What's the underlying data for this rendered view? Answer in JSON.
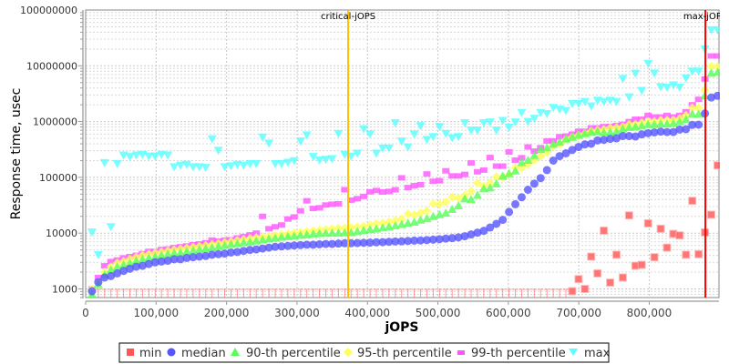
{
  "chart_data": {
    "type": "scatter",
    "xlabel": "jOPS",
    "ylabel": "Response time, usec",
    "xlim": [
      0,
      899000
    ],
    "ylim": [
      700,
      100000000
    ],
    "y_scale": "log",
    "grid": true,
    "legend_position": "bottom",
    "x_ticks": [
      "0",
      "100,000",
      "200,000",
      "300,000",
      "400,000",
      "500,000",
      "600,000",
      "700,000",
      "800,000"
    ],
    "x_tick_values": [
      0,
      100000,
      200000,
      300000,
      400000,
      500000,
      600000,
      700000,
      800000
    ],
    "y_ticks": [
      "1000",
      "10000",
      "100000",
      "1000000",
      "10000000",
      "100000000"
    ],
    "y_tick_values": [
      1000,
      10000,
      100000,
      1000000,
      10000000,
      100000000
    ],
    "annotations": [
      {
        "label": "critical-jOPS",
        "x": 372600,
        "color": "#ffc000"
      },
      {
        "label": "max-jOPS",
        "x": 879700,
        "color": "#ff0000"
      }
    ],
    "x": [
      8970,
      17940,
      26910,
      35880,
      44850,
      53820,
      62790,
      71760,
      80730,
      89700,
      98670,
      107640,
      116610,
      125580,
      134550,
      143520,
      152490,
      161460,
      170430,
      179400,
      188370,
      197340,
      206310,
      215280,
      224250,
      233220,
      242190,
      251160,
      260130,
      269100,
      278070,
      287040,
      296010,
      304980,
      313950,
      322920,
      331890,
      340860,
      349830,
      358800,
      367770,
      376740,
      385710,
      394680,
      403650,
      412620,
      421590,
      430560,
      439530,
      448500,
      457470,
      466440,
      475410,
      484380,
      493350,
      502320,
      511290,
      520260,
      529230,
      538200,
      547170,
      556140,
      565110,
      574080,
      583050,
      592020,
      600990,
      609960,
      618930,
      627900,
      636870,
      645840,
      654810,
      663780,
      672750,
      681720,
      690690,
      699660,
      708630,
      717600,
      726570,
      735540,
      744510,
      753480,
      762450,
      771420,
      780390,
      789360,
      798330,
      807300,
      816270,
      825240,
      834210,
      843180,
      852150,
      861120,
      870090,
      879060,
      888030,
      897000
    ],
    "series": [
      {
        "name": "min",
        "color": "#ff5555",
        "marker": "square",
        "values": [
          null,
          null,
          null,
          null,
          null,
          null,
          null,
          null,
          null,
          null,
          null,
          null,
          null,
          null,
          null,
          null,
          null,
          null,
          null,
          null,
          null,
          null,
          null,
          null,
          null,
          null,
          null,
          null,
          null,
          null,
          null,
          null,
          null,
          null,
          null,
          null,
          null,
          null,
          null,
          null,
          null,
          null,
          null,
          null,
          null,
          null,
          null,
          null,
          null,
          null,
          null,
          null,
          null,
          null,
          null,
          null,
          null,
          null,
          null,
          null,
          null,
          null,
          null,
          null,
          null,
          null,
          null,
          null,
          null,
          null,
          null,
          null,
          null,
          null,
          null,
          null,
          910,
          1500,
          1000,
          3800,
          1900,
          11100,
          1300,
          4100,
          1600,
          20800,
          2600,
          2700,
          15000,
          3700,
          12000,
          5500,
          9700,
          9100,
          4100,
          38000,
          4200,
          10300,
          21400,
          164000
        ]
      },
      {
        "name": "median",
        "color": "#5555ff",
        "marker": "circle",
        "values": [
          910,
          1320,
          1600,
          1700,
          1900,
          2100,
          2300,
          2500,
          2600,
          2800,
          3000,
          3100,
          3200,
          3400,
          3400,
          3600,
          3700,
          3800,
          3900,
          4100,
          4200,
          4300,
          4500,
          4600,
          4800,
          5000,
          5100,
          5300,
          5500,
          5700,
          5800,
          5900,
          6000,
          6100,
          6200,
          6200,
          6300,
          6400,
          6400,
          6500,
          6600,
          6600,
          6650,
          6700,
          6750,
          6850,
          6900,
          7000,
          7100,
          7150,
          7250,
          7350,
          7400,
          7500,
          7650,
          7800,
          8000,
          8150,
          8400,
          8800,
          9500,
          10200,
          11000,
          12600,
          14700,
          17300,
          24000,
          33000,
          44000,
          60000,
          77000,
          97000,
          135000,
          200000,
          240000,
          270000,
          310000,
          350000,
          390000,
          400000,
          460000,
          470000,
          490000,
          500000,
          550000,
          550000,
          540000,
          590000,
          620000,
          640000,
          660000,
          650000,
          650000,
          720000,
          730000,
          870000,
          880000,
          1400000,
          2700000,
          2900000
        ]
      },
      {
        "name": "90-th percentile",
        "color": "#55ff55",
        "marker": "triangle-up",
        "values": [
          810,
          1200,
          1800,
          2200,
          2500,
          2700,
          2900,
          3200,
          3400,
          3600,
          3800,
          4000,
          4200,
          4400,
          4500,
          4700,
          4900,
          5100,
          5300,
          5500,
          5800,
          6000,
          6300,
          6500,
          6800,
          7000,
          7300,
          7600,
          7900,
          8200,
          8500,
          8700,
          8900,
          9200,
          9400,
          9700,
          9900,
          10000,
          10100,
          10100,
          10150,
          10200,
          10700,
          11200,
          11600,
          12000,
          12500,
          13000,
          13600,
          14300,
          15200,
          15800,
          17200,
          18300,
          20000,
          21600,
          23000,
          26700,
          31100,
          41500,
          40000,
          48000,
          62800,
          65000,
          77000,
          106000,
          117000,
          131000,
          185000,
          203000,
          248000,
          318000,
          340000,
          394000,
          430000,
          490000,
          525000,
          570000,
          610000,
          650000,
          660000,
          640000,
          650000,
          660000,
          740000,
          790000,
          810000,
          840000,
          890000,
          890000,
          910000,
          910000,
          930000,
          1000000,
          1100000,
          1370000,
          1370000,
          2900000,
          7400000,
          7700000
        ]
      },
      {
        "name": "95-th percentile",
        "color": "#ffff55",
        "marker": "diamond",
        "values": [
          1000,
          1300,
          2000,
          2500,
          2900,
          3100,
          3400,
          3700,
          4000,
          4200,
          4400,
          4600,
          4800,
          5000,
          5200,
          5400,
          5600,
          5800,
          6000,
          6200,
          6500,
          6800,
          7100,
          7400,
          7700,
          8000,
          8300,
          8600,
          8900,
          9200,
          9500,
          9800,
          10100,
          10400,
          10700,
          11000,
          11300,
          11600,
          12000,
          12300,
          12400,
          12600,
          13000,
          13300,
          14000,
          14800,
          15200,
          15800,
          16800,
          17700,
          22300,
          21300,
          23000,
          25100,
          33600,
          33000,
          36100,
          44000,
          42400,
          47600,
          56500,
          79300,
          70000,
          80000,
          103000,
          100000,
          113000,
          149000,
          149000,
          170000,
          203000,
          240000,
          280000,
          362000,
          394000,
          475000,
          525000,
          565000,
          610000,
          670000,
          700000,
          720000,
          770000,
          780000,
          810000,
          890000,
          890000,
          950000,
          1000000,
          1000000,
          1050000,
          1050000,
          1060000,
          1130000,
          1290000,
          1760000,
          1760000,
          3700000,
          9800000,
          9800000
        ]
      },
      {
        "name": "99-th percentile",
        "color": "#ff55ff",
        "marker": "rect",
        "values": [
          1000,
          1600,
          2600,
          3100,
          3300,
          3600,
          3800,
          4000,
          4300,
          4700,
          4700,
          5100,
          5200,
          5500,
          5700,
          5900,
          6200,
          6400,
          6700,
          7500,
          7200,
          7500,
          7600,
          8200,
          8700,
          9300,
          10000,
          20000,
          12000,
          13000,
          14000,
          17900,
          19500,
          25100,
          38000,
          27700,
          28500,
          32000,
          33000,
          33600,
          60000,
          39000,
          41500,
          45600,
          55000,
          58000,
          54600,
          56000,
          60000,
          98000,
          65600,
          71000,
          74000,
          115000,
          85000,
          87000,
          131000,
          106000,
          106000,
          113000,
          181000,
          126000,
          135000,
          227000,
          159000,
          159000,
          285000,
          203000,
          225000,
          350000,
          295000,
          340000,
          450000,
          450000,
          535000,
          550000,
          595000,
          670000,
          670000,
          770000,
          770000,
          810000,
          820000,
          850000,
          890000,
          1000000,
          1100000,
          1100000,
          1290000,
          1210000,
          1210000,
          1290000,
          1210000,
          1290000,
          1500000,
          2000000,
          2500000,
          5800000,
          15000000,
          15000000
        ]
      },
      {
        "name": "max",
        "color": "#55ffff",
        "marker": "triangle-down",
        "values": [
          10400,
          4100,
          183000,
          13000,
          176000,
          250000,
          235000,
          250000,
          256000,
          240000,
          240000,
          256000,
          250000,
          154000,
          165000,
          170000,
          154000,
          154000,
          150000,
          490000,
          305000,
          154000,
          160000,
          170000,
          165000,
          175000,
          175000,
          525000,
          410000,
          175000,
          175000,
          185000,
          198000,
          445000,
          575000,
          235000,
          203000,
          210000,
          215000,
          610000,
          257000,
          240000,
          270000,
          740000,
          595000,
          270000,
          335000,
          335000,
          950000,
          445000,
          350000,
          595000,
          840000,
          475000,
          535000,
          810000,
          610000,
          510000,
          535000,
          950000,
          700000,
          700000,
          950000,
          980000,
          700000,
          1040000,
          790000,
          980000,
          1450000,
          1000000,
          1140000,
          1450000,
          1380000,
          1780000,
          1660000,
          1570000,
          2100000,
          2100000,
          2280000,
          1900000,
          2400000,
          2280000,
          2400000,
          2280000,
          5900000,
          2750000,
          7300000,
          3600000,
          11000000,
          7400000,
          4200000,
          4100000,
          4500000,
          4100000,
          6000000,
          8000000,
          8000000,
          20000000,
          44000000,
          44000000
        ]
      }
    ]
  }
}
